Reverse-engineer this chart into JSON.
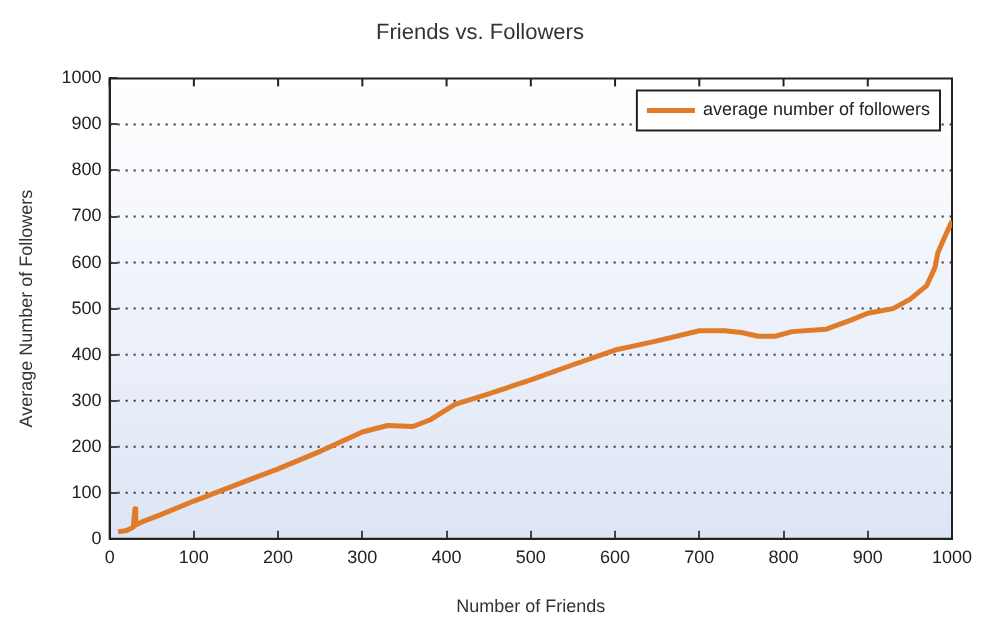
{
  "chart_data": {
    "type": "line",
    "title": "Friends vs. Followers",
    "xlabel": "Number of Friends",
    "ylabel": "Average Number of Followers",
    "x": [
      10,
      20,
      28,
      30,
      31,
      40,
      60,
      100,
      150,
      200,
      250,
      300,
      330,
      360,
      380,
      410,
      450,
      500,
      550,
      600,
      620,
      650,
      700,
      730,
      750,
      770,
      790,
      810,
      850,
      880,
      900,
      930,
      950,
      970,
      980,
      983,
      990,
      1000
    ],
    "series": [
      {
        "name": "average number of followers",
        "color": "#e07b2a",
        "values": [
          15,
          18,
          25,
          65,
          30,
          38,
          52,
          82,
          117,
          152,
          190,
          232,
          246,
          244,
          258,
          292,
          315,
          345,
          378,
          410,
          418,
          430,
          452,
          452,
          448,
          440,
          440,
          450,
          455,
          475,
          490,
          500,
          520,
          550,
          590,
          620,
          650,
          690
        ]
      }
    ],
    "xlim": [
      0,
      1000
    ],
    "xticks": [
      0,
      100,
      200,
      300,
      400,
      500,
      600,
      700,
      800,
      900,
      1000
    ],
    "ylim": [
      0,
      1000
    ],
    "yticks": [
      0,
      100,
      200,
      300,
      400,
      500,
      600,
      700,
      800,
      900,
      1000
    ],
    "grid": "y",
    "legend": "top right",
    "marker": "none",
    "line_style": "solid"
  }
}
